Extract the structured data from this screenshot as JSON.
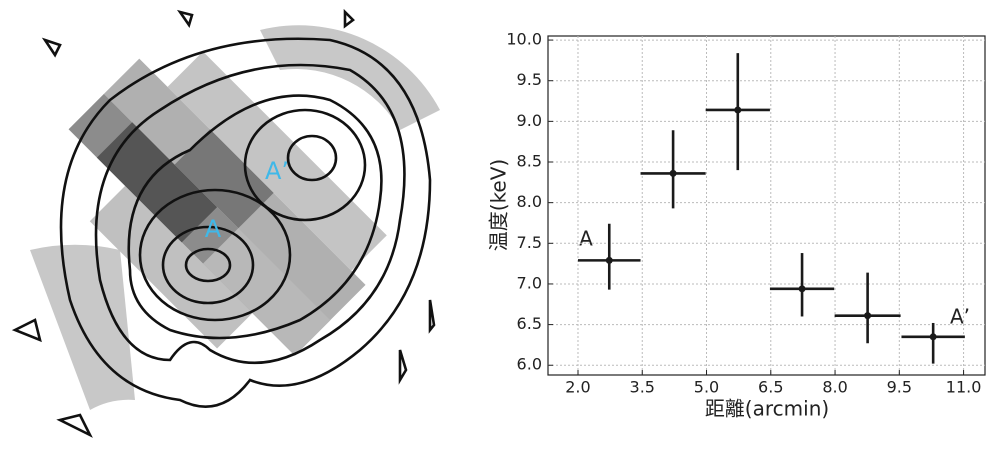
{
  "image_labels": [
    "A",
    "A’"
  ],
  "chart_data": {
    "type": "errorbar",
    "xlabel": "距離(arcmin)",
    "ylabel": "温度(keV)",
    "x": [
      2.73,
      4.22,
      5.73,
      7.23,
      8.76,
      10.29
    ],
    "xerr": [
      0.73,
      0.76,
      0.75,
      0.75,
      0.77,
      0.74
    ],
    "values": [
      7.29,
      8.36,
      9.14,
      6.94,
      6.61,
      6.35
    ],
    "yerr_low": [
      0.36,
      0.43,
      0.74,
      0.34,
      0.34,
      0.33
    ],
    "yerr_high": [
      0.45,
      0.53,
      0.7,
      0.44,
      0.53,
      0.17
    ],
    "color": "#1a1a1a",
    "annotations": [
      "A",
      "A’"
    ],
    "xlim": [
      1.3,
      11.5
    ],
    "xticks": [
      {
        "value": 2,
        "label": "2.0"
      },
      3.5,
      {
        "value": 5,
        "label": "5.0"
      },
      6.5,
      {
        "value": 8,
        "label": "8.0"
      },
      9.5,
      {
        "value": 11,
        "label": "11.0"
      }
    ],
    "ylim": [
      5.88,
      10.05
    ],
    "yticks": [
      {
        "value": 6,
        "label": "6.0"
      },
      6.5,
      {
        "value": 7,
        "label": "7.0"
      },
      7.5,
      {
        "value": 8,
        "label": "8.0"
      },
      8.5,
      {
        "value": 9,
        "label": "9.0"
      },
      9.5,
      {
        "value": 10,
        "label": "10.0"
      }
    ],
    "grid": true
  }
}
